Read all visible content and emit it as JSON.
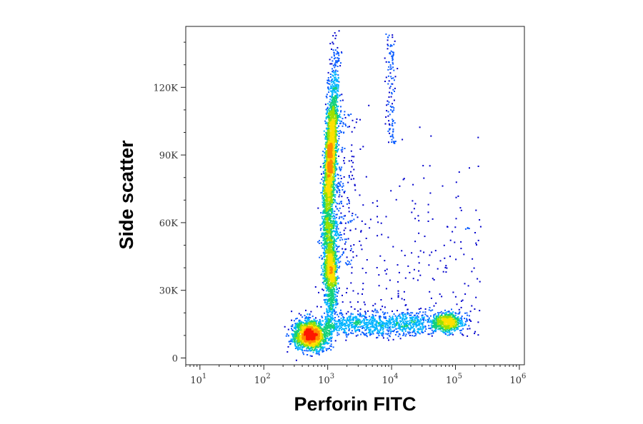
{
  "chart_data": {
    "type": "scatter",
    "xlabel": "Perforin FITC",
    "ylabel": "Side scatter",
    "x_scale": "log",
    "xlim": [
      6,
      1200000
    ],
    "ylim": [
      -3000,
      147000
    ],
    "grid": false,
    "x_ticks": [
      {
        "value": 10,
        "base": "10",
        "exp": "1"
      },
      {
        "value": 100,
        "base": "10",
        "exp": "2"
      },
      {
        "value": 1000,
        "base": "10",
        "exp": "3"
      },
      {
        "value": 10000,
        "base": "10",
        "exp": "4"
      },
      {
        "value": 100000,
        "base": "10",
        "exp": "5"
      },
      {
        "value": 1000000,
        "base": "10",
        "exp": "6"
      }
    ],
    "y_ticks": [
      {
        "value": 0,
        "label": "0"
      },
      {
        "value": 30000,
        "label": "30K"
      },
      {
        "value": 60000,
        "label": "60K"
      },
      {
        "value": 90000,
        "label": "90K"
      },
      {
        "value": 120000,
        "label": "120K"
      }
    ],
    "density_colors": [
      "#0000cc",
      "#0a5cff",
      "#00b4ff",
      "#12d07a",
      "#9ce000",
      "#ffe000",
      "#ff8a00",
      "#ff1800"
    ],
    "populations": [
      {
        "x_log_center": 3.03,
        "y_center": 88000,
        "x_log_spread": 0.045,
        "y_spread": 19000,
        "tilt": 1.8e-06,
        "count": 2600
      },
      {
        "x_log_center": 3.04,
        "y_center": 37000,
        "x_log_spread": 0.05,
        "y_spread": 9000,
        "tilt": 0,
        "count": 900
      },
      {
        "x_log_center": 2.72,
        "y_center": 10500,
        "x_log_spread": 0.13,
        "y_spread": 3300,
        "tilt": 0,
        "count": 1700
      },
      {
        "x_log_center": 4.85,
        "y_center": 16000,
        "x_log_spread": 0.13,
        "y_spread": 2200,
        "tilt": 0,
        "count": 650
      }
    ]
  }
}
